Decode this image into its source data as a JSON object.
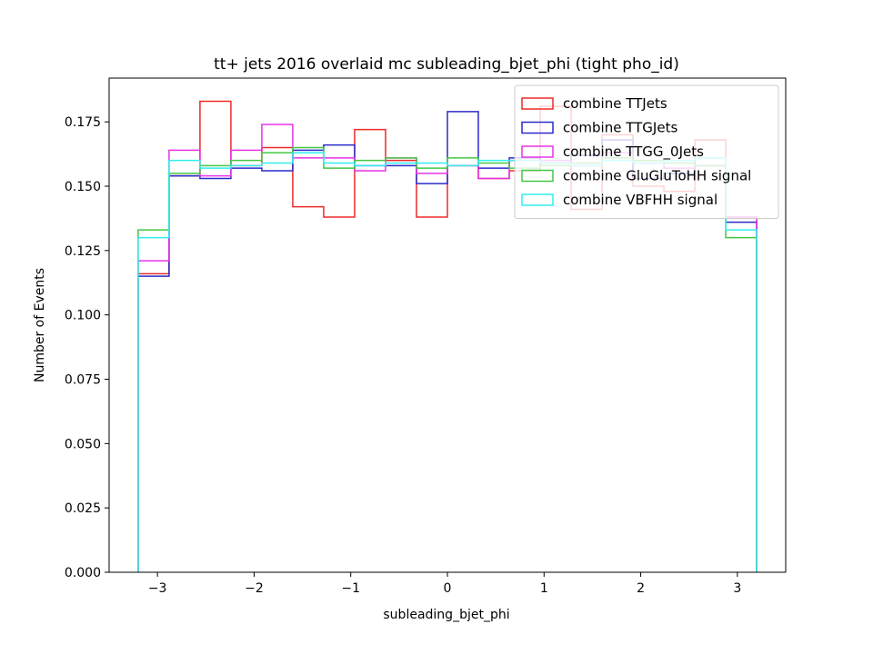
{
  "chart_data": {
    "type": "histogram-step",
    "title": "tt+ jets 2016 overlaid mc subleading_bjet_phi (tight pho_id)",
    "xlabel": "subleading_bjet_phi",
    "ylabel": "Number of Events",
    "xlim": [
      -3.5,
      3.5
    ],
    "ylim": [
      0,
      0.192
    ],
    "x_ticks": [
      -3,
      -2,
      -1,
      0,
      1,
      2,
      3
    ],
    "x_tick_labels": [
      "−3",
      "−2",
      "−1",
      "0",
      "1",
      "2",
      "3"
    ],
    "y_ticks": [
      0.0,
      0.025,
      0.05,
      0.075,
      0.1,
      0.125,
      0.15,
      0.175
    ],
    "y_tick_labels": [
      "0.000",
      "0.025",
      "0.050",
      "0.075",
      "0.100",
      "0.125",
      "0.150",
      "0.175"
    ],
    "bin_edges": [
      -3.2,
      -2.88,
      -2.56,
      -2.24,
      -1.92,
      -1.6,
      -1.28,
      -0.96,
      -0.64,
      -0.32,
      0.0,
      0.32,
      0.64,
      0.96,
      1.28,
      1.6,
      1.92,
      2.24,
      2.56,
      2.88,
      3.2
    ],
    "legend_position": "upper right",
    "series": [
      {
        "name": "combine TTJets",
        "color": "#ee2a2a",
        "values": [
          0.116,
          0.154,
          0.183,
          0.158,
          0.165,
          0.142,
          0.138,
          0.172,
          0.16,
          0.138,
          0.158,
          0.153,
          0.156,
          0.181,
          0.141,
          0.17,
          0.15,
          0.148,
          0.168,
          0.138
        ]
      },
      {
        "name": "combine TTGJets",
        "color": "#2a2acc",
        "values": [
          0.115,
          0.154,
          0.153,
          0.157,
          0.156,
          0.164,
          0.166,
          0.158,
          0.158,
          0.151,
          0.179,
          0.157,
          0.161,
          0.159,
          0.162,
          0.168,
          0.153,
          0.155,
          0.158,
          0.136
        ]
      },
      {
        "name": "combine TTGG_0Jets",
        "color": "#e633e6",
        "values": [
          0.121,
          0.164,
          0.154,
          0.164,
          0.174,
          0.161,
          0.161,
          0.156,
          0.161,
          0.155,
          0.158,
          0.153,
          0.16,
          0.16,
          0.158,
          0.163,
          0.159,
          0.157,
          0.158,
          0.138
        ]
      },
      {
        "name": "combine GluGluToHH signal",
        "color": "#44c744",
        "values": [
          0.133,
          0.155,
          0.158,
          0.16,
          0.163,
          0.165,
          0.157,
          0.16,
          0.161,
          0.157,
          0.161,
          0.159,
          0.157,
          0.158,
          0.159,
          0.161,
          0.16,
          0.159,
          0.158,
          0.13
        ]
      },
      {
        "name": "combine VBFHH signal",
        "color": "#33eeee",
        "values": [
          0.13,
          0.16,
          0.157,
          0.158,
          0.159,
          0.163,
          0.159,
          0.158,
          0.159,
          0.159,
          0.158,
          0.16,
          0.16,
          0.159,
          0.158,
          0.16,
          0.159,
          0.16,
          0.161,
          0.133
        ]
      }
    ]
  }
}
